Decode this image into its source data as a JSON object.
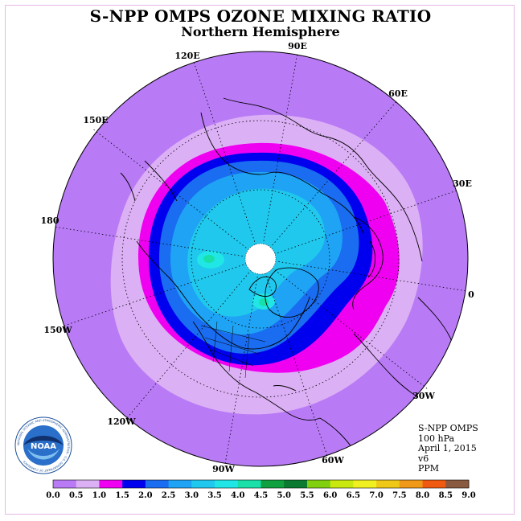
{
  "header": {
    "title": "S-NPP OMPS OZONE MIXING RATIO",
    "subtitle": "Northern Hemisphere"
  },
  "map": {
    "projection": "polar-stereographic-north",
    "pole_hole_color": "#ffffff",
    "longitude_labels": [
      "90E",
      "60E",
      "30E",
      "0",
      "30W",
      "60W",
      "90W",
      "120W",
      "150W",
      "180",
      "150E",
      "120E"
    ]
  },
  "info": {
    "instrument": "S-NPP OMPS",
    "level": "100 hPa",
    "date": "April 1, 2015",
    "version": "v6",
    "units": "PPM"
  },
  "colorbar": {
    "ticks": [
      "0.0",
      "0.5",
      "1.0",
      "1.5",
      "2.0",
      "2.5",
      "3.0",
      "3.5",
      "4.0",
      "4.5",
      "5.0",
      "5.5",
      "6.0",
      "6.5",
      "7.0",
      "7.5",
      "8.0",
      "8.5",
      "9.0"
    ],
    "colors": [
      "#b87af5",
      "#dcb0f5",
      "#f000f0",
      "#0000ee",
      "#1a6cf0",
      "#1ea3f5",
      "#20c8ee",
      "#20e6e6",
      "#18e0a8",
      "#10a040",
      "#0a7a30",
      "#80d010",
      "#c8e810",
      "#f0f020",
      "#f0c818",
      "#f09818",
      "#f05a10",
      "#e01010",
      "#8a5a40"
    ]
  },
  "logo": {
    "text": "NOAA",
    "ring_text": "NATIONAL OCEANIC AND ATMOSPHERIC ADMINISTRATION · U.S. DEPARTMENT OF COMMERCE"
  }
}
